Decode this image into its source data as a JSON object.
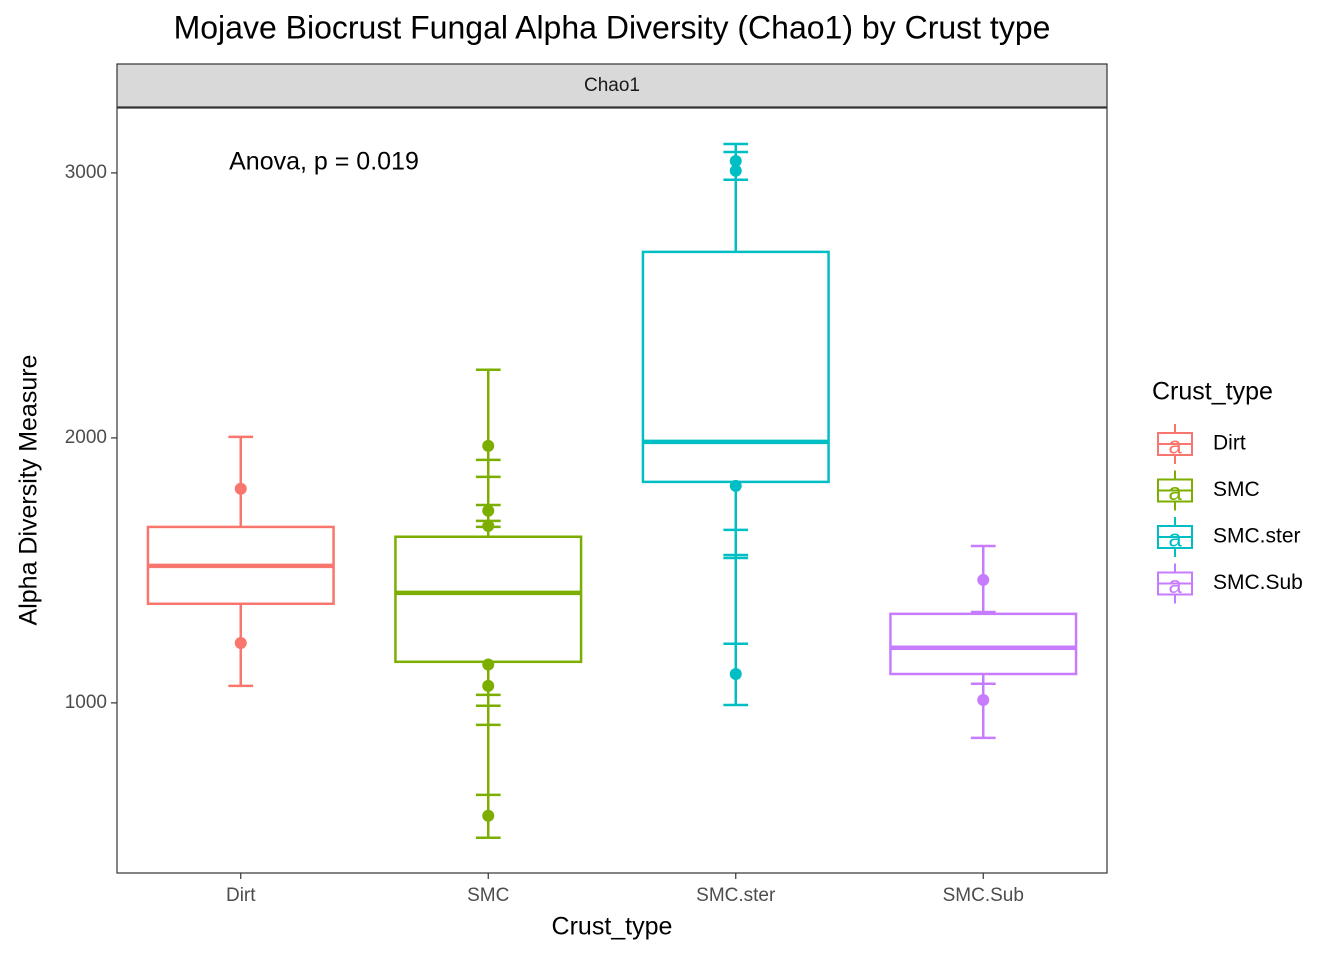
{
  "chart_data": {
    "type": "boxplot",
    "title": "Mojave Biocrust Fungal Alpha Diversity (Chao1) by Crust type",
    "facet_label": "Chao1",
    "annotation": "Anova, p = 0.019",
    "x_label": "Crust_type",
    "y_label": "Alpha Diversity Measure",
    "legend_title": "Crust_type",
    "legend_key_glyph": "a",
    "categories": [
      "Dirt",
      "SMC",
      "SMC.ster",
      "SMC.Sub"
    ],
    "ylim": [
      358,
      3245
    ],
    "yticks": [
      1000,
      2000,
      3000
    ],
    "grid": false,
    "series": [
      {
        "name": "Dirt",
        "color": "#F8766D",
        "q1": 1374,
        "median": 1517,
        "q3": 1664,
        "whisker_low": 1064,
        "whisker_high": 2004,
        "caps": [
          2004,
          1064
        ],
        "points": [
          1808,
          1226
        ]
      },
      {
        "name": "SMC",
        "color": "#7CAE00",
        "q1": 1155,
        "median": 1415,
        "q3": 1627,
        "whisker_low": 491,
        "whisker_high": 2257,
        "caps": [
          2257,
          1917,
          1853,
          1747,
          1687,
          1664,
          1030,
          989,
          917,
          653,
          491
        ],
        "points": [
          1970,
          1725,
          1668,
          1145,
          1064,
          574
        ]
      },
      {
        "name": "SMC.ster",
        "color": "#00BFC4",
        "q1": 1834,
        "median": 1985,
        "q3": 2702,
        "whisker_low": 992,
        "whisker_high": 3109,
        "caps": [
          3109,
          3079,
          2974,
          1653,
          1558,
          1547,
          1223,
          992
        ],
        "points": [
          3045,
          3008,
          1819,
          1109
        ]
      },
      {
        "name": "SMC.Sub",
        "color": "#C77CFF",
        "q1": 1109,
        "median": 1208,
        "q3": 1336,
        "whisker_low": 868,
        "whisker_high": 1592,
        "caps": [
          1592,
          1343,
          1072,
          868
        ],
        "points": [
          1464,
          1011
        ]
      }
    ]
  }
}
